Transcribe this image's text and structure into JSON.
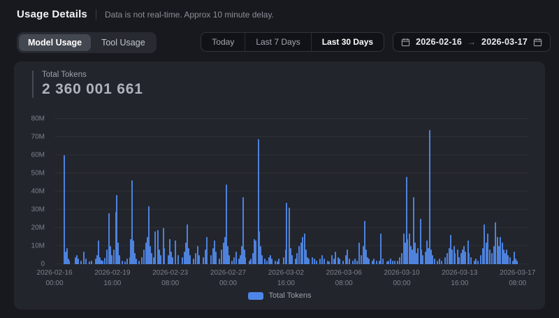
{
  "header": {
    "title": "Usage Details",
    "subtitle": "Data is not real-time. Approx 10 minute delay."
  },
  "tabs": [
    {
      "label": "Model Usage",
      "active": true
    },
    {
      "label": "Tool Usage",
      "active": false
    }
  ],
  "range_buttons": [
    {
      "label": "Today",
      "active": false
    },
    {
      "label": "Last 7 Days",
      "active": false
    },
    {
      "label": "Last 30 Days",
      "active": true
    }
  ],
  "date_range": {
    "start": "2026-02-16",
    "end": "2026-03-17",
    "arrow": "→"
  },
  "metric": {
    "label": "Total Tokens",
    "value": "2 360 001 661"
  },
  "colors": {
    "bar": "#4e82dd",
    "legend_swatch": "#4d86e8",
    "card_bg": "#23252c",
    "page_bg": "#18191e",
    "gridline": "#2d3038"
  },
  "chart_data": {
    "type": "bar",
    "title": "Total Tokens",
    "ylabel": "tokens",
    "unit": "millions of tokens",
    "ylim": [
      0,
      80
    ],
    "grid": true,
    "legend_position": "bottom-center",
    "legend": {
      "label": "Total Tokens",
      "color": "#4d86e8"
    },
    "y_ticks": [
      "0",
      "10M",
      "20M",
      "30M",
      "40M",
      "50M",
      "60M",
      "70M",
      "80M"
    ],
    "x_ticks": [
      {
        "date": "2026-02-16",
        "time": "00:00",
        "frac": 0.0
      },
      {
        "date": "2026-02-19",
        "time": "16:00",
        "frac": 0.122
      },
      {
        "date": "2026-02-23",
        "time": "08:00",
        "frac": 0.244
      },
      {
        "date": "2026-02-27",
        "time": "00:00",
        "frac": 0.366
      },
      {
        "date": "2026-03-02",
        "time": "16:00",
        "frac": 0.488
      },
      {
        "date": "2026-03-06",
        "time": "08:00",
        "frac": 0.61
      },
      {
        "date": "2026-03-10",
        "time": "00:00",
        "frac": 0.732
      },
      {
        "date": "2026-03-13",
        "time": "16:00",
        "frac": 0.854
      },
      {
        "date": "2026-03-17",
        "time": "08:00",
        "frac": 0.976
      }
    ],
    "points_format": "[fraction_of_time_axis, value_in_millions]",
    "points": [
      [
        0.019,
        60
      ],
      [
        0.022,
        7
      ],
      [
        0.025,
        9
      ],
      [
        0.028,
        3
      ],
      [
        0.03,
        2
      ],
      [
        0.043,
        4
      ],
      [
        0.046,
        5
      ],
      [
        0.049,
        3
      ],
      [
        0.054,
        2
      ],
      [
        0.061,
        7
      ],
      [
        0.065,
        3
      ],
      [
        0.072,
        1.5
      ],
      [
        0.077,
        2
      ],
      [
        0.086,
        3
      ],
      [
        0.088,
        5
      ],
      [
        0.091,
        13
      ],
      [
        0.094,
        4
      ],
      [
        0.097,
        2.5
      ],
      [
        0.1,
        2
      ],
      [
        0.104,
        3.5
      ],
      [
        0.109,
        8
      ],
      [
        0.113,
        28
      ],
      [
        0.116,
        10
      ],
      [
        0.12,
        5
      ],
      [
        0.123,
        8
      ],
      [
        0.128,
        29
      ],
      [
        0.13,
        38
      ],
      [
        0.133,
        12
      ],
      [
        0.136,
        5
      ],
      [
        0.142,
        2
      ],
      [
        0.148,
        1.5
      ],
      [
        0.152,
        3
      ],
      [
        0.157,
        4
      ],
      [
        0.159,
        14
      ],
      [
        0.162,
        46
      ],
      [
        0.165,
        13
      ],
      [
        0.168,
        6
      ],
      [
        0.171,
        3
      ],
      [
        0.177,
        2
      ],
      [
        0.183,
        4
      ],
      [
        0.187,
        8
      ],
      [
        0.191,
        12
      ],
      [
        0.194,
        15
      ],
      [
        0.197,
        32
      ],
      [
        0.2,
        10
      ],
      [
        0.203,
        6
      ],
      [
        0.207,
        4
      ],
      [
        0.21,
        18
      ],
      [
        0.216,
        19
      ],
      [
        0.22,
        8
      ],
      [
        0.223,
        5
      ],
      [
        0.228,
        20
      ],
      [
        0.23,
        9
      ],
      [
        0.238,
        5
      ],
      [
        0.242,
        14
      ],
      [
        0.245,
        7
      ],
      [
        0.248,
        4
      ],
      [
        0.254,
        13
      ],
      [
        0.259,
        5
      ],
      [
        0.268,
        4
      ],
      [
        0.272,
        7
      ],
      [
        0.275,
        12
      ],
      [
        0.278,
        22
      ],
      [
        0.281,
        9
      ],
      [
        0.284,
        5
      ],
      [
        0.291,
        3
      ],
      [
        0.296,
        6
      ],
      [
        0.3,
        10
      ],
      [
        0.303,
        5
      ],
      [
        0.312,
        4
      ],
      [
        0.316,
        8
      ],
      [
        0.319,
        15
      ],
      [
        0.329,
        5
      ],
      [
        0.333,
        9
      ],
      [
        0.336,
        13
      ],
      [
        0.339,
        7
      ],
      [
        0.346,
        3
      ],
      [
        0.351,
        8
      ],
      [
        0.355,
        12
      ],
      [
        0.358,
        15
      ],
      [
        0.361,
        44
      ],
      [
        0.364,
        10
      ],
      [
        0.367,
        5
      ],
      [
        0.372,
        2
      ],
      [
        0.377,
        4
      ],
      [
        0.381,
        7
      ],
      [
        0.387,
        3
      ],
      [
        0.39,
        5
      ],
      [
        0.393,
        10
      ],
      [
        0.396,
        37
      ],
      [
        0.399,
        8
      ],
      [
        0.401,
        4
      ],
      [
        0.409,
        2
      ],
      [
        0.413,
        3
      ],
      [
        0.417,
        6
      ],
      [
        0.42,
        14
      ],
      [
        0.423,
        13
      ],
      [
        0.428,
        69
      ],
      [
        0.43,
        18
      ],
      [
        0.433,
        10
      ],
      [
        0.436,
        5
      ],
      [
        0.442,
        3
      ],
      [
        0.446,
        2
      ],
      [
        0.451,
        4
      ],
      [
        0.454,
        5
      ],
      [
        0.457,
        3
      ],
      [
        0.464,
        2
      ],
      [
        0.468,
        1.5
      ],
      [
        0.472,
        3
      ],
      [
        0.481,
        4
      ],
      [
        0.486,
        8
      ],
      [
        0.488,
        34
      ],
      [
        0.493,
        31
      ],
      [
        0.496,
        9
      ],
      [
        0.499,
        5
      ],
      [
        0.506,
        3
      ],
      [
        0.51,
        6
      ],
      [
        0.514,
        10
      ],
      [
        0.519,
        12
      ],
      [
        0.522,
        15
      ],
      [
        0.526,
        17
      ],
      [
        0.529,
        8
      ],
      [
        0.532,
        4
      ],
      [
        0.535,
        3
      ],
      [
        0.542,
        4
      ],
      [
        0.546,
        3
      ],
      [
        0.551,
        2
      ],
      [
        0.558,
        3
      ],
      [
        0.562,
        5
      ],
      [
        0.567,
        3
      ],
      [
        0.574,
        2
      ],
      [
        0.578,
        1.5
      ],
      [
        0.583,
        5
      ],
      [
        0.587,
        3
      ],
      [
        0.591,
        7
      ],
      [
        0.596,
        4
      ],
      [
        0.6,
        3
      ],
      [
        0.607,
        2
      ],
      [
        0.612,
        5
      ],
      [
        0.616,
        8
      ],
      [
        0.62,
        3
      ],
      [
        0.628,
        2
      ],
      [
        0.632,
        3
      ],
      [
        0.636,
        2
      ],
      [
        0.641,
        12
      ],
      [
        0.645,
        5
      ],
      [
        0.649,
        10
      ],
      [
        0.652,
        24
      ],
      [
        0.655,
        8
      ],
      [
        0.658,
        4
      ],
      [
        0.661,
        3
      ],
      [
        0.668,
        2
      ],
      [
        0.672,
        3
      ],
      [
        0.677,
        2
      ],
      [
        0.683,
        2
      ],
      [
        0.687,
        17
      ],
      [
        0.691,
        3
      ],
      [
        0.699,
        1.5
      ],
      [
        0.703,
        2
      ],
      [
        0.707,
        3
      ],
      [
        0.712,
        2
      ],
      [
        0.716,
        2
      ],
      [
        0.722,
        2
      ],
      [
        0.726,
        4
      ],
      [
        0.73,
        6
      ],
      [
        0.735,
        17
      ],
      [
        0.738,
        12
      ],
      [
        0.741,
        48
      ],
      [
        0.743,
        14
      ],
      [
        0.746,
        17
      ],
      [
        0.749,
        10
      ],
      [
        0.752,
        8
      ],
      [
        0.755,
        37
      ],
      [
        0.758,
        12
      ],
      [
        0.761,
        6
      ],
      [
        0.765,
        9
      ],
      [
        0.77,
        25
      ],
      [
        0.772,
        8
      ],
      [
        0.775,
        5
      ],
      [
        0.78,
        7
      ],
      [
        0.784,
        13
      ],
      [
        0.787,
        9
      ],
      [
        0.79,
        74
      ],
      [
        0.793,
        8
      ],
      [
        0.796,
        5
      ],
      [
        0.8,
        3
      ],
      [
        0.806,
        2
      ],
      [
        0.81,
        3
      ],
      [
        0.814,
        2
      ],
      [
        0.822,
        4
      ],
      [
        0.826,
        6
      ],
      [
        0.83,
        9
      ],
      [
        0.833,
        16
      ],
      [
        0.836,
        8
      ],
      [
        0.841,
        10
      ],
      [
        0.843,
        6
      ],
      [
        0.848,
        8
      ],
      [
        0.851,
        4
      ],
      [
        0.855,
        6
      ],
      [
        0.858,
        8
      ],
      [
        0.862,
        10
      ],
      [
        0.865,
        7
      ],
      [
        0.87,
        13
      ],
      [
        0.872,
        6
      ],
      [
        0.877,
        4
      ],
      [
        0.883,
        2
      ],
      [
        0.887,
        3
      ],
      [
        0.891,
        2
      ],
      [
        0.897,
        5
      ],
      [
        0.901,
        9
      ],
      [
        0.904,
        22
      ],
      [
        0.909,
        12
      ],
      [
        0.912,
        17
      ],
      [
        0.916,
        8
      ],
      [
        0.92,
        6
      ],
      [
        0.925,
        10
      ],
      [
        0.928,
        23
      ],
      [
        0.932,
        15
      ],
      [
        0.935,
        10
      ],
      [
        0.938,
        15
      ],
      [
        0.942,
        12
      ],
      [
        0.945,
        8
      ],
      [
        0.949,
        6
      ],
      [
        0.952,
        8
      ],
      [
        0.955,
        5
      ],
      [
        0.959,
        4
      ],
      [
        0.964,
        2
      ],
      [
        0.968,
        7
      ],
      [
        0.971,
        3
      ],
      [
        0.974,
        2
      ]
    ]
  }
}
